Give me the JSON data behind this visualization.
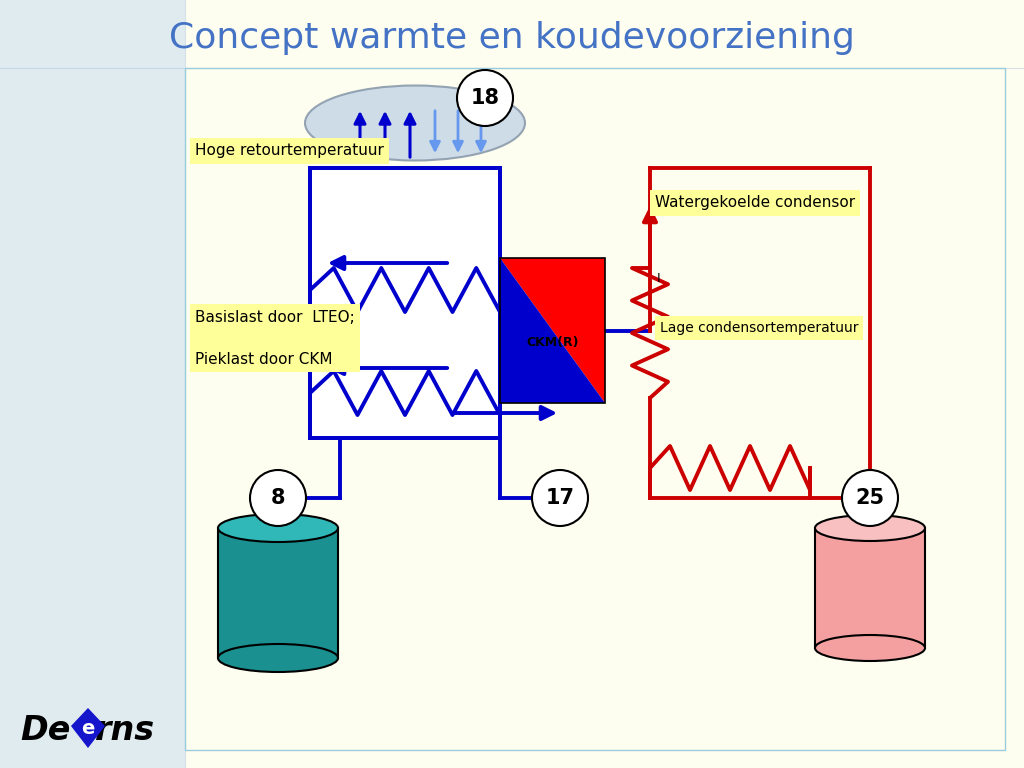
{
  "title": "Concept warmte en koudevoorziening",
  "title_color": "#4472C4",
  "title_fontsize": 26,
  "bg_color": "#FEFEF0",
  "left_bg_color": "#C8DCF0",
  "label_hoge": "Hoge retourtemperatuur",
  "label_basislast": "Basislast door  LTEO;\n\nPieklast door CKM",
  "label_watergekoelde": "Watergekoelde condensor",
  "label_lage": "Lage condensortemperatuur",
  "label_ckm": "CKM(R)",
  "num_18": "18",
  "num_8": "8",
  "num_17": "17",
  "num_25": "25",
  "blue_color": "#0000CC",
  "red_color": "#CC0000",
  "teal_color": "#1A9090",
  "teal_top": "#30B8B8",
  "pink_color": "#F5A0A0",
  "pink_top": "#F8C0C0",
  "arrow_blue_light": "#6699EE",
  "label_bg": "#FFFF99",
  "border_color": "#99CCDD"
}
